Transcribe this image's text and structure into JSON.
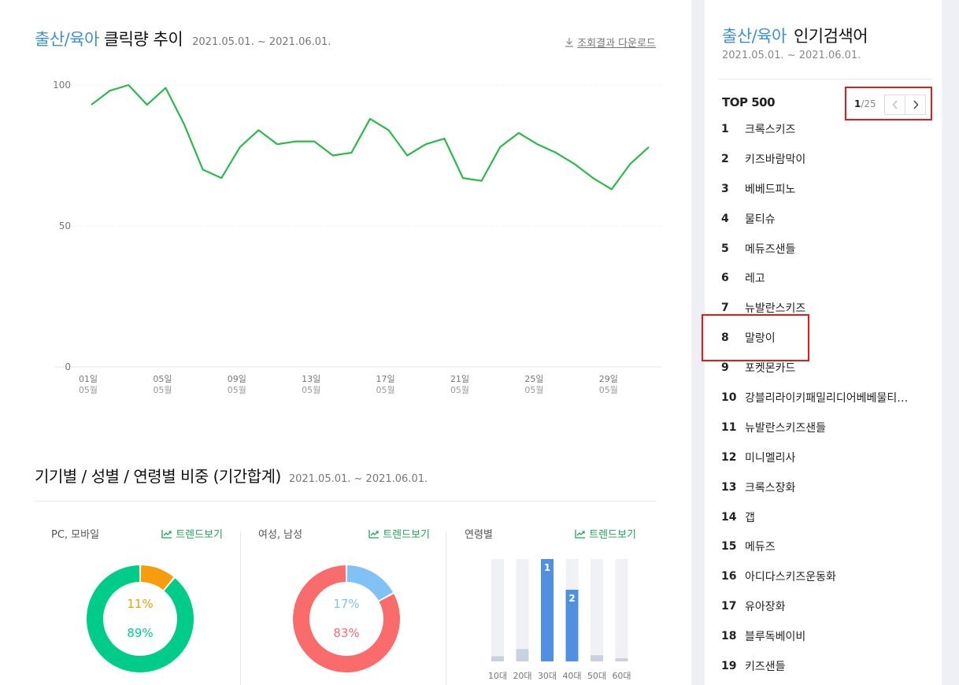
{
  "header": {
    "category": "출산/육아",
    "title_rest": "클릭량 추이",
    "date_range": "2021.05.01. ~ 2021.06.01.",
    "download_label": "조회결과 다운로드"
  },
  "chart_data": {
    "type": "line",
    "title": "출산/육아 클릭량 추이",
    "xlabel": "",
    "ylabel": "",
    "ylim": [
      0,
      100
    ],
    "yticks": [
      "100",
      "50",
      "0"
    ],
    "x_tick_labels": [
      {
        "day": "01일",
        "month": "05월"
      },
      {
        "day": "05일",
        "month": "05월"
      },
      {
        "day": "09일",
        "month": "05월"
      },
      {
        "day": "13일",
        "month": "05월"
      },
      {
        "day": "17일",
        "month": "05월"
      },
      {
        "day": "21일",
        "month": "05월"
      },
      {
        "day": "25일",
        "month": "05월"
      },
      {
        "day": "29일",
        "month": "05월"
      }
    ],
    "x": [
      "05-01",
      "05-02",
      "05-03",
      "05-04",
      "05-05",
      "05-06",
      "05-07",
      "05-08",
      "05-09",
      "05-10",
      "05-11",
      "05-12",
      "05-13",
      "05-14",
      "05-15",
      "05-16",
      "05-17",
      "05-18",
      "05-19",
      "05-20",
      "05-21",
      "05-22",
      "05-23",
      "05-24",
      "05-25",
      "05-26",
      "05-27",
      "05-28",
      "05-29",
      "05-30",
      "05-31"
    ],
    "series": [
      {
        "color": "#2db84c",
        "values": [
          93,
          98,
          100,
          93,
          99,
          86,
          70,
          67,
          78,
          84,
          79,
          80,
          80,
          75,
          76,
          88,
          84,
          75,
          79,
          81,
          67,
          66,
          78,
          83,
          79,
          76,
          72,
          67,
          63,
          72,
          78
        ]
      }
    ],
    "grid": true
  },
  "section2": {
    "title": "기기별 / 성별 / 연령별 비중 (기간합계)",
    "date_range": "2021.05.01. ~ 2021.06.01.",
    "trend_label": "트렌드보기",
    "device": {
      "label": "PC, 모바일",
      "pc_pct": 11,
      "mobile_pct": 89,
      "pc_text": "11%",
      "mobile_text": "89%",
      "pc_color": "#f59d0c",
      "mobile_color": "#00cc8a"
    },
    "gender": {
      "label": "여성, 남성",
      "male_pct": 17,
      "female_pct": 83,
      "male_text": "17%",
      "female_text": "83%",
      "male_color": "#82c1f5",
      "female_color": "#fa6b6b"
    },
    "age": {
      "label": "연령별",
      "groups": [
        {
          "label": "10대",
          "value": 5,
          "rank": ""
        },
        {
          "label": "20대",
          "value": 12,
          "rank": ""
        },
        {
          "label": "30대",
          "value": 100,
          "rank": "1"
        },
        {
          "label": "40대",
          "value": 70,
          "rank": "2"
        },
        {
          "label": "50대",
          "value": 6,
          "rank": ""
        },
        {
          "label": "60대",
          "value": 3,
          "rank": ""
        }
      ],
      "highlight_color": "#4f90e0",
      "base_color": "#c9d1e0"
    }
  },
  "sidebar": {
    "category": "출산/육아",
    "title_rest": "인기검색어",
    "date_range": "2021.05.01. ~ 2021.06.01.",
    "top_label": "TOP 500",
    "page_current": "1",
    "page_total": "/25",
    "items": [
      {
        "rank": "1",
        "keyword": "크록스키즈"
      },
      {
        "rank": "2",
        "keyword": "키즈바람막이"
      },
      {
        "rank": "3",
        "keyword": "베베드피노"
      },
      {
        "rank": "4",
        "keyword": "물티슈"
      },
      {
        "rank": "5",
        "keyword": "메듀즈샌들"
      },
      {
        "rank": "6",
        "keyword": "레고"
      },
      {
        "rank": "7",
        "keyword": "뉴발란스키즈"
      },
      {
        "rank": "8",
        "keyword": "말랑이"
      },
      {
        "rank": "9",
        "keyword": "포켓몬카드"
      },
      {
        "rank": "10",
        "keyword": "강블리라이키패밀리디어베베물티…"
      },
      {
        "rank": "11",
        "keyword": "뉴발란스키즈샌들"
      },
      {
        "rank": "12",
        "keyword": "미니멜리사"
      },
      {
        "rank": "13",
        "keyword": "크록스장화"
      },
      {
        "rank": "14",
        "keyword": "갭"
      },
      {
        "rank": "15",
        "keyword": "메듀즈"
      },
      {
        "rank": "16",
        "keyword": "아디다스키즈운동화"
      },
      {
        "rank": "17",
        "keyword": "유아장화"
      },
      {
        "rank": "18",
        "keyword": "블루독베이비"
      },
      {
        "rank": "19",
        "keyword": "키즈샌들"
      }
    ]
  }
}
